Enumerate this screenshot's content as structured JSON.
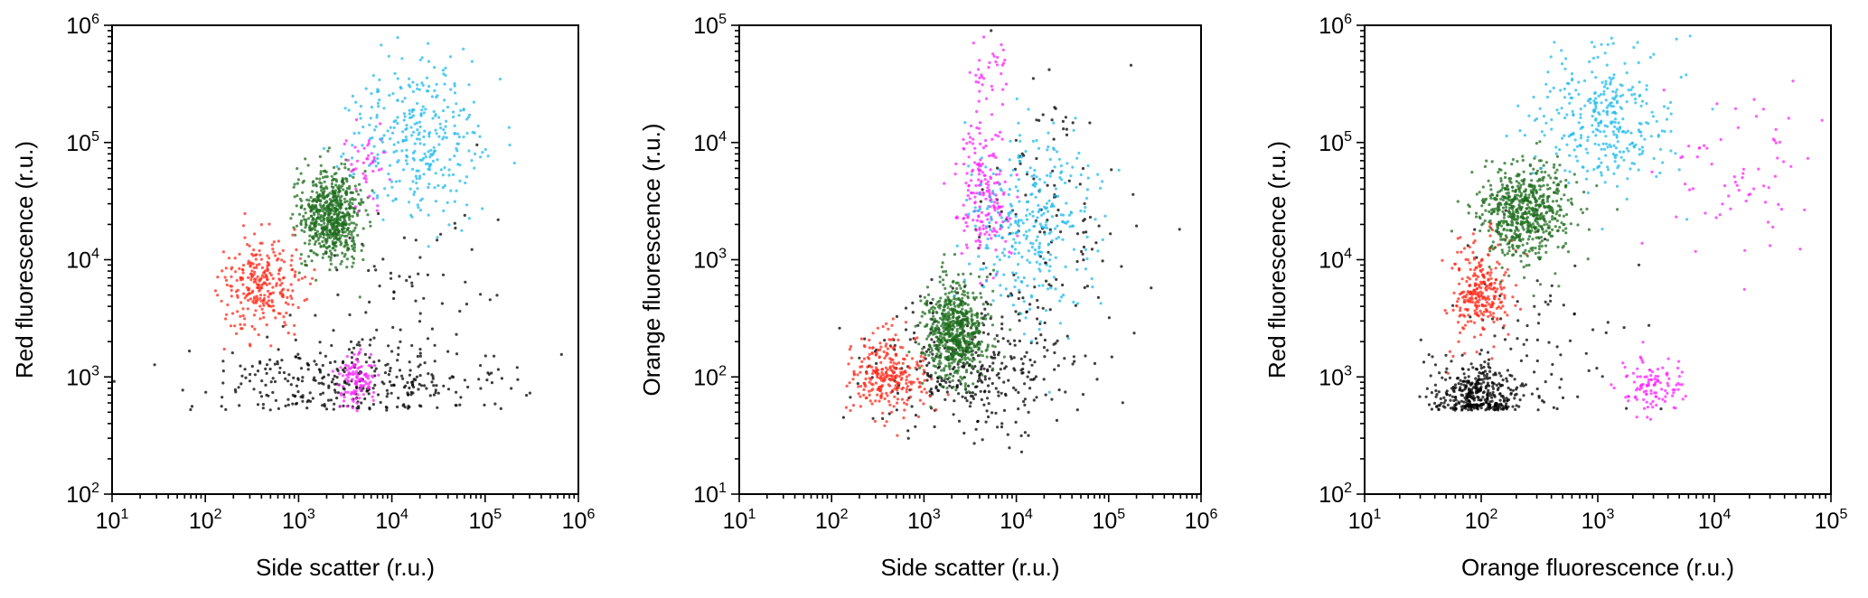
{
  "chart_data": [
    {
      "type": "scatter",
      "title": "",
      "xlabel": "Side scatter (r.u.)",
      "ylabel": "Red fluorescence (r.u.)",
      "xscale": "log",
      "yscale": "log",
      "xlim": [
        10,
        1000000
      ],
      "ylim": [
        100,
        1000000
      ],
      "xticks": [
        {
          "b": "10",
          "e": "1"
        },
        {
          "b": "10",
          "e": "2"
        },
        {
          "b": "10",
          "e": "3"
        },
        {
          "b": "10",
          "e": "4"
        },
        {
          "b": "10",
          "e": "5"
        },
        {
          "b": "10",
          "e": "6"
        }
      ],
      "yticks": [
        {
          "b": "10",
          "e": "2"
        },
        {
          "b": "10",
          "e": "3"
        },
        {
          "b": "10",
          "e": "4"
        },
        {
          "b": "10",
          "e": "5"
        },
        {
          "b": "10",
          "e": "6"
        }
      ],
      "grid": false,
      "legend": "none",
      "series": [
        {
          "color": "#000000",
          "clusters": [
            {
              "cx": 3500,
              "cy": 900,
              "sx": 0.75,
              "sy": 0.18,
              "n": 340,
              "ymin": 520
            },
            {
              "cx": 20000,
              "cy": 6000,
              "sx": 0.6,
              "sy": 0.45,
              "n": 70,
              "ymin": 520
            }
          ]
        },
        {
          "color": "#ff2a1a",
          "clusters": [
            {
              "cx": 400,
              "cy": 6000,
              "sx": 0.2,
              "sy": 0.2,
              "n": 280
            }
          ]
        },
        {
          "color": "#1e6e1e",
          "clusters": [
            {
              "cx": 2200,
              "cy": 25000,
              "sx": 0.17,
              "sy": 0.2,
              "n": 650
            }
          ]
        },
        {
          "color": "#ff22ff",
          "clusters": [
            {
              "cx": 4200,
              "cy": 900,
              "sx": 0.1,
              "sy": 0.12,
              "n": 110
            },
            {
              "cx": 5500,
              "cy": 60000,
              "sx": 0.15,
              "sy": 0.2,
              "n": 45
            }
          ]
        },
        {
          "color": "#22bbee",
          "clusters": [
            {
              "cx": 20000,
              "cy": 120000,
              "sx": 0.35,
              "sy": 0.35,
              "n": 330
            }
          ]
        }
      ]
    },
    {
      "type": "scatter",
      "title": "",
      "xlabel": "Side scatter (r.u.)",
      "ylabel": "Orange fluorescence (r.u.)",
      "xscale": "log",
      "yscale": "log",
      "xlim": [
        10,
        1000000
      ],
      "ylim": [
        10,
        100000
      ],
      "xticks": [
        {
          "b": "10",
          "e": "1"
        },
        {
          "b": "10",
          "e": "2"
        },
        {
          "b": "10",
          "e": "3"
        },
        {
          "b": "10",
          "e": "4"
        },
        {
          "b": "10",
          "e": "5"
        },
        {
          "b": "10",
          "e": "6"
        }
      ],
      "yticks": [
        {
          "b": "10",
          "e": "1"
        },
        {
          "b": "10",
          "e": "2"
        },
        {
          "b": "10",
          "e": "3"
        },
        {
          "b": "10",
          "e": "4"
        },
        {
          "b": "10",
          "e": "5"
        }
      ],
      "grid": false,
      "legend": "none",
      "series": [
        {
          "color": "#000000",
          "clusters": [
            {
              "cx": 3500,
              "cy": 130,
              "sx": 0.55,
              "sy": 0.3,
              "n": 360
            },
            {
              "cx": 30000,
              "cy": 2000,
              "sx": 0.45,
              "sy": 0.6,
              "n": 120
            }
          ]
        },
        {
          "color": "#ff2a1a",
          "clusters": [
            {
              "cx": 400,
              "cy": 100,
              "sx": 0.2,
              "sy": 0.17,
              "n": 280
            }
          ]
        },
        {
          "color": "#1e6e1e",
          "clusters": [
            {
              "cx": 2200,
              "cy": 250,
              "sx": 0.17,
              "sy": 0.2,
              "n": 650
            }
          ]
        },
        {
          "color": "#ff22ff",
          "clusters": [
            {
              "cx": 4500,
              "cy": 3500,
              "sx": 0.15,
              "sy": 0.28,
              "n": 190
            },
            {
              "cx": 5000,
              "cy": 40000,
              "sx": 0.15,
              "sy": 0.2,
              "n": 40
            }
          ]
        },
        {
          "color": "#22bbee",
          "clusters": [
            {
              "cx": 15000,
              "cy": 2000,
              "sx": 0.35,
              "sy": 0.4,
              "n": 330
            }
          ]
        }
      ]
    },
    {
      "type": "scatter",
      "title": "",
      "xlabel": "Orange fluorescence (r.u.)",
      "ylabel": "Red fluorescence (r.u.)",
      "xscale": "log",
      "yscale": "log",
      "xlim": [
        10,
        100000
      ],
      "ylim": [
        100,
        1000000
      ],
      "xticks": [
        {
          "b": "10",
          "e": "1"
        },
        {
          "b": "10",
          "e": "2"
        },
        {
          "b": "10",
          "e": "3"
        },
        {
          "b": "10",
          "e": "4"
        },
        {
          "b": "10",
          "e": "5"
        }
      ],
      "yticks": [
        {
          "b": "10",
          "e": "2"
        },
        {
          "b": "10",
          "e": "3"
        },
        {
          "b": "10",
          "e": "4"
        },
        {
          "b": "10",
          "e": "5"
        },
        {
          "b": "10",
          "e": "6"
        }
      ],
      "grid": false,
      "legend": "none",
      "series": [
        {
          "color": "#000000",
          "clusters": [
            {
              "cx": 90,
              "cy": 700,
              "sx": 0.17,
              "sy": 0.13,
              "n": 360,
              "ymin": 520
            },
            {
              "cx": 300,
              "cy": 2000,
              "sx": 0.4,
              "sy": 0.4,
              "n": 90,
              "ymin": 520
            }
          ]
        },
        {
          "color": "#ff2a1a",
          "clusters": [
            {
              "cx": 100,
              "cy": 5500,
              "sx": 0.12,
              "sy": 0.22,
              "n": 280
            }
          ]
        },
        {
          "color": "#1e6e1e",
          "clusters": [
            {
              "cx": 250,
              "cy": 25000,
              "sx": 0.2,
              "sy": 0.2,
              "n": 650
            }
          ]
        },
        {
          "color": "#ff22ff",
          "clusters": [
            {
              "cx": 3000,
              "cy": 900,
              "sx": 0.15,
              "sy": 0.12,
              "n": 110
            },
            {
              "cx": 20000,
              "cy": 50000,
              "sx": 0.35,
              "sy": 0.35,
              "n": 70
            }
          ]
        },
        {
          "color": "#22bbee",
          "clusters": [
            {
              "cx": 1200,
              "cy": 150000,
              "sx": 0.3,
              "sy": 0.3,
              "n": 330
            }
          ]
        }
      ]
    }
  ]
}
